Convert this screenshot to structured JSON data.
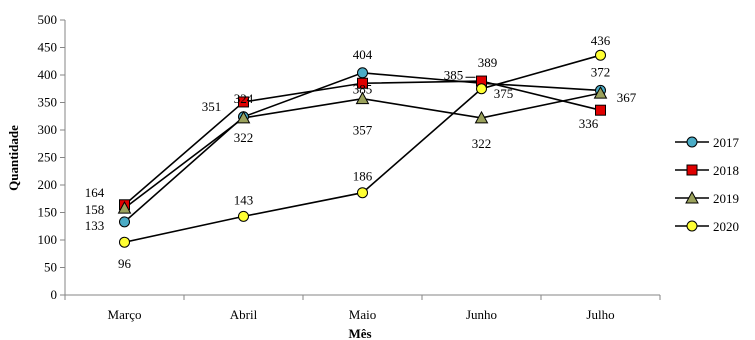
{
  "chart_data": {
    "type": "line",
    "title": "",
    "xlabel": "Mês",
    "ylabel": "Quantidade",
    "categories": [
      "Março",
      "Abril",
      "Maio",
      "Junho",
      "Julho"
    ],
    "ylim": [
      0,
      500
    ],
    "yticks": [
      0,
      50,
      100,
      150,
      200,
      250,
      300,
      350,
      400,
      450,
      500
    ],
    "grid": false,
    "legend_position": "right",
    "series": [
      {
        "name": "2017",
        "values": [
          133,
          324,
          404,
          385,
          372
        ],
        "color": "#4BACC6",
        "marker": "circle"
      },
      {
        "name": "2018",
        "values": [
          164,
          351,
          385,
          389,
          336
        ],
        "color": "#E00000",
        "marker": "square"
      },
      {
        "name": "2019",
        "values": [
          158,
          322,
          357,
          322,
          367
        ],
        "color": "#9BA25C",
        "marker": "triangle"
      },
      {
        "name": "2020",
        "values": [
          96,
          143,
          186,
          375,
          436
        ],
        "color": "#FFFF33",
        "marker": "circle"
      }
    ]
  }
}
